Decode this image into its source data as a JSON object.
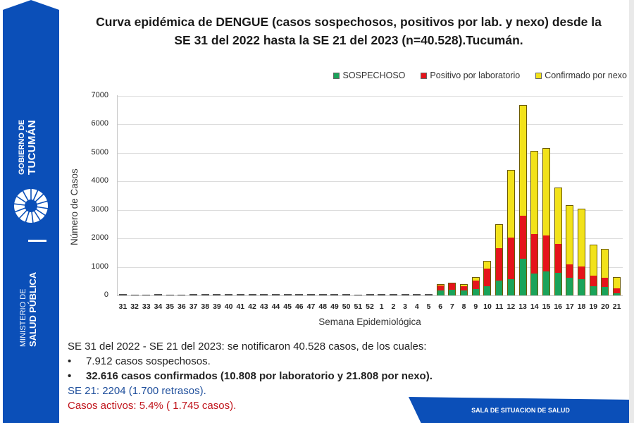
{
  "sidebar": {
    "gobierno_line1": "GOBIERNO DE",
    "gobierno_line2": "TUCUMÁN",
    "ministerio_line1": "MINISTERIO DE",
    "ministerio_line2": "SALUD PÚBLICA",
    "logo_icon": "sun-spiral-icon",
    "brand_color": "#0b4fb8"
  },
  "title": {
    "line1": "Curva epidémica de DENGUE (casos sospechosos, positivos por lab. y nexo) desde la",
    "line2": "SE 31 del 2022 hasta la SE 21 del 2023 (n=40.528).Tucumán."
  },
  "chart_data": {
    "type": "bar",
    "stacked": true,
    "title": "Curva epidémica de DENGUE (casos sospechosos, positivos por lab. y nexo) desde la SE 31 del 2022 hasta la SE 21 del 2023 (n=40.528).Tucumán.",
    "xlabel": "Semana Epidemiológica",
    "ylabel": "Número de Casos",
    "ylim": [
      0,
      7000
    ],
    "yticks": [
      "0",
      "1000",
      "2000",
      "3000",
      "4000",
      "5000",
      "6000",
      "7000"
    ],
    "grid": true,
    "legend_position": "top-right",
    "categories": [
      "31",
      "32",
      "33",
      "34",
      "35",
      "36",
      "37",
      "38",
      "39",
      "40",
      "41",
      "42",
      "43",
      "44",
      "45",
      "46",
      "47",
      "48",
      "49",
      "50",
      "51",
      "52",
      "1",
      "2",
      "3",
      "4",
      "5",
      "6",
      "7",
      "8",
      "9",
      "10",
      "11",
      "12",
      "13",
      "14",
      "15",
      "16",
      "17",
      "18",
      "19",
      "20",
      "21"
    ],
    "series": [
      {
        "name": "SOSPECHOSO",
        "color": "#1aa35a",
        "values": [
          5,
          1,
          1,
          5,
          1,
          1,
          5,
          5,
          5,
          5,
          5,
          5,
          5,
          5,
          5,
          5,
          5,
          5,
          5,
          5,
          1,
          5,
          5,
          5,
          5,
          8,
          30,
          170,
          200,
          180,
          220,
          330,
          530,
          560,
          1280,
          770,
          830,
          800,
          610,
          560,
          320,
          290,
          80
        ]
      },
      {
        "name": "Positivo por laboratorio",
        "color": "#e5141b",
        "values": [
          2,
          0,
          0,
          2,
          0,
          0,
          2,
          2,
          2,
          2,
          2,
          2,
          2,
          2,
          2,
          2,
          2,
          2,
          2,
          2,
          0,
          2,
          2,
          2,
          2,
          3,
          20,
          170,
          210,
          130,
          290,
          600,
          1130,
          1460,
          1520,
          1380,
          1280,
          1000,
          490,
          450,
          370,
          330,
          180
        ]
      },
      {
        "name": "Confirmado por nexo",
        "color": "#f2e21a",
        "values": [
          0,
          0,
          0,
          0,
          0,
          0,
          0,
          0,
          0,
          0,
          0,
          0,
          0,
          0,
          0,
          0,
          0,
          0,
          0,
          0,
          0,
          0,
          0,
          0,
          0,
          0,
          0,
          20,
          20,
          60,
          120,
          270,
          810,
          2360,
          3860,
          2900,
          3030,
          1950,
          2040,
          2000,
          1060,
          980,
          360
        ]
      }
    ]
  },
  "summary": {
    "line1": "SE 31 del 2022 - SE 21 del 2023: se notificaron 40.528 casos, de los cuales:",
    "bullet1": "7.912 casos sospechosos.",
    "bullet2": "32.616 casos confirmados (10.808 por laboratorio y 21.808 por nexo).",
    "bullet_char": "•",
    "line4": "SE 21: 2204 (1.700 retrasos).",
    "line5": "Casos activos: 5.4% ( 1.745 casos)."
  },
  "banner": {
    "label": "SALA DE SITUACION  DE SALUD"
  }
}
